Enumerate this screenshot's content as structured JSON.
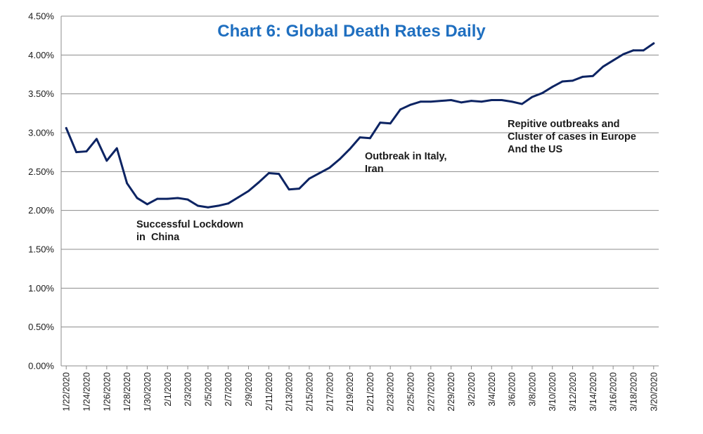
{
  "chart_data": {
    "type": "line",
    "title": "Chart 6: Global Death Rates Daily",
    "xlabel": "",
    "ylabel": "",
    "ylim": [
      0,
      4.5
    ],
    "y_tick_values": [
      0,
      0.5,
      1,
      1.5,
      2,
      2.5,
      3,
      3.5,
      4,
      4.5
    ],
    "y_tick_labels": [
      "0.00%",
      "0.50%",
      "1.00%",
      "1.50%",
      "2.00%",
      "2.50%",
      "3.00%",
      "3.50%",
      "4.00%",
      "4.50%"
    ],
    "x": [
      "1/22/2020",
      "1/23/2020",
      "1/24/2020",
      "1/25/2020",
      "1/26/2020",
      "1/27/2020",
      "1/28/2020",
      "1/29/2020",
      "1/30/2020",
      "1/31/2020",
      "2/1/2020",
      "2/2/2020",
      "2/3/2020",
      "2/4/2020",
      "2/5/2020",
      "2/6/2020",
      "2/7/2020",
      "2/8/2020",
      "2/9/2020",
      "2/10/2020",
      "2/11/2020",
      "2/12/2020",
      "2/13/2020",
      "2/14/2020",
      "2/15/2020",
      "2/16/2020",
      "2/17/2020",
      "2/18/2020",
      "2/19/2020",
      "2/20/2020",
      "2/21/2020",
      "2/22/2020",
      "2/23/2020",
      "2/24/2020",
      "2/25/2020",
      "2/26/2020",
      "2/27/2020",
      "2/28/2020",
      "2/29/2020",
      "3/1/2020",
      "3/2/2020",
      "3/3/2020",
      "3/4/2020",
      "3/5/2020",
      "3/6/2020",
      "3/7/2020",
      "3/8/2020",
      "3/9/2020",
      "3/10/2020",
      "3/11/2020",
      "3/12/2020",
      "3/13/2020",
      "3/14/2020",
      "3/15/2020",
      "3/16/2020",
      "3/17/2020",
      "3/18/2020",
      "3/19/2020",
      "3/20/2020"
    ],
    "x_tick_labels": [
      "1/22/2020",
      "1/24/2020",
      "1/26/2020",
      "1/28/2020",
      "1/30/2020",
      "2/1/2020",
      "2/3/2020",
      "2/5/2020",
      "2/7/2020",
      "2/9/2020",
      "2/11/2020",
      "2/13/2020",
      "2/15/2020",
      "2/17/2020",
      "2/19/2020",
      "2/21/2020",
      "2/23/2020",
      "2/25/2020",
      "2/27/2020",
      "2/29/2020",
      "3/2/2020",
      "3/4/2020",
      "3/6/2020",
      "3/8/2020",
      "3/10/2020",
      "3/12/2020",
      "3/14/2020",
      "3/16/2020",
      "3/18/2020",
      "3/20/2020"
    ],
    "series": [
      {
        "values": [
          3.06,
          2.75,
          2.76,
          2.92,
          2.64,
          2.8,
          2.35,
          2.16,
          2.08,
          2.15,
          2.15,
          2.16,
          2.14,
          2.06,
          2.04,
          2.06,
          2.09,
          2.17,
          2.25,
          2.36,
          2.48,
          2.47,
          2.27,
          2.28,
          2.41,
          2.48,
          2.55,
          2.66,
          2.79,
          2.94,
          2.93,
          3.13,
          3.12,
          3.3,
          3.36,
          3.4,
          3.4,
          3.41,
          3.42,
          3.39,
          3.41,
          3.4,
          3.42,
          3.42,
          3.4,
          3.37,
          3.46,
          3.51,
          3.59,
          3.66,
          3.67,
          3.72,
          3.73,
          3.85,
          3.93,
          4.01,
          4.06,
          4.06,
          4.15
        ],
        "color": "#0d2463"
      }
    ],
    "annotations": [
      {
        "lines": [
          "Successful Lockdown",
          "in  China"
        ]
      },
      {
        "lines": [
          "Outbreak in Italy,",
          "Iran"
        ]
      },
      {
        "lines": [
          "Repitive outbreaks and",
          "Cluster of cases in Europe",
          "And the US"
        ]
      }
    ],
    "grid": true,
    "legend": "none",
    "colors": {
      "line": "#0d2463",
      "title": "#1f6fc0",
      "grid": "#8c8c8c",
      "axis": "#8c8c8c"
    }
  }
}
